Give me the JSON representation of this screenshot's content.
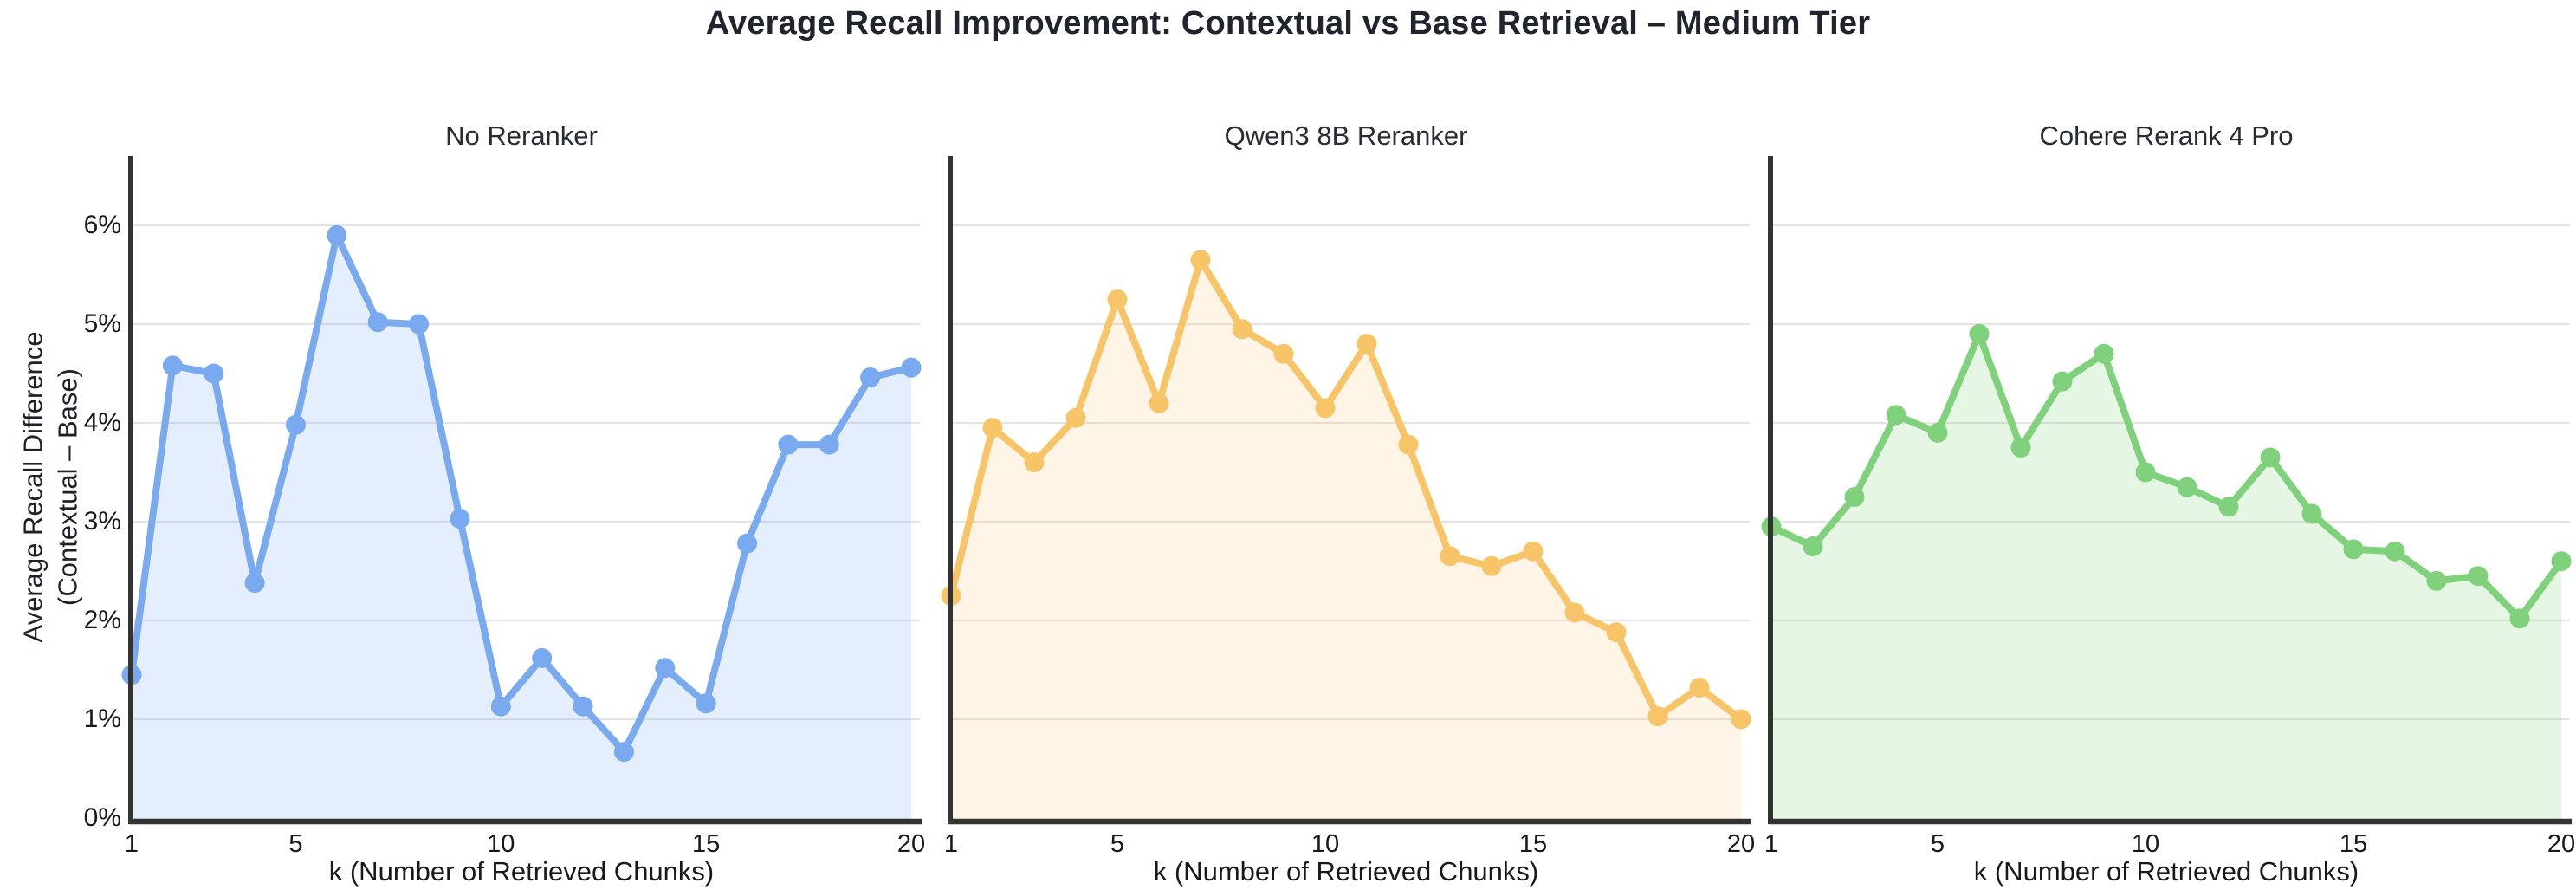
{
  "chart_data": {
    "type": "line",
    "area_fill": true,
    "title": "Average Recall Improvement: Contextual vs Base Retrieval – Medium Tier",
    "xlabel": "k (Number of Retrieved Chunks)",
    "ylabel": "Average Recall Difference (Contextual – Base)",
    "ylabel_lines": [
      "Average Recall Difference",
      "(Contextual – Base)"
    ],
    "x": [
      1,
      2,
      3,
      4,
      5,
      6,
      7,
      8,
      9,
      10,
      11,
      12,
      13,
      14,
      15,
      16,
      17,
      18,
      19,
      20
    ],
    "x_ticks": [
      "1",
      "5",
      "10",
      "15",
      "20"
    ],
    "y_ticks": [
      "0%",
      "1%",
      "2%",
      "3%",
      "4%",
      "5%",
      "6%"
    ],
    "ylim": [
      0,
      6.7
    ],
    "grid": true,
    "legend": "none",
    "panels": [
      {
        "title": "No Reranker",
        "color": "#79aaf0",
        "fill": "rgba(121,170,240,0.20)",
        "values": [
          1.45,
          4.58,
          4.5,
          2.38,
          3.98,
          5.9,
          5.02,
          5.0,
          3.03,
          1.13,
          1.62,
          1.13,
          0.67,
          1.52,
          1.16,
          2.78,
          3.78,
          3.78,
          4.46,
          4.56
        ]
      },
      {
        "title": "Qwen3 8B Reranker",
        "color": "#f8c468",
        "fill": "rgba(248,196,104,0.17)",
        "values": [
          2.25,
          3.95,
          3.6,
          4.05,
          5.25,
          4.2,
          5.65,
          4.95,
          4.7,
          4.15,
          4.8,
          3.78,
          2.65,
          2.55,
          2.7,
          2.08,
          1.88,
          1.03,
          1.32,
          1.0
        ]
      },
      {
        "title": "Cohere Rerank 4 Pro",
        "color": "#80d17b",
        "fill": "rgba(128,209,123,0.20)",
        "values": [
          2.95,
          2.75,
          3.25,
          4.08,
          3.9,
          4.9,
          3.75,
          4.42,
          4.7,
          3.5,
          3.35,
          3.15,
          3.65,
          3.08,
          2.72,
          2.7,
          2.4,
          2.45,
          2.02,
          2.6
        ]
      }
    ],
    "axis_color": "#333333",
    "gridline_color": "#e4e4e4"
  }
}
